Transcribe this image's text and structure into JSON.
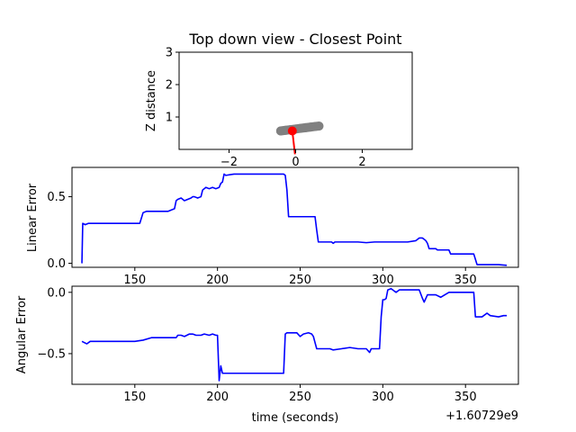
{
  "chart_data": [
    {
      "type": "scatter",
      "title": "Top down view - Closest Point",
      "xlabel": "",
      "ylabel": "Z distance",
      "xlim": [
        -3.5,
        3.5
      ],
      "ylim": [
        0,
        3
      ],
      "xticks": [
        -2,
        0,
        2
      ],
      "xtick_labels": [
        "−2",
        "0",
        "2"
      ],
      "yticks": [
        1,
        2,
        3
      ],
      "ytick_labels": [
        "1",
        "2",
        "3"
      ],
      "grid": false,
      "colors": {
        "trail": "#808080",
        "point": "#ff0000",
        "heading": "#ff0000"
      },
      "trail": {
        "x": [
          -0.45,
          -0.3,
          -0.15,
          0.0,
          0.15,
          0.3,
          0.45,
          0.6,
          0.7
        ],
        "y": [
          0.57,
          0.59,
          0.61,
          0.63,
          0.65,
          0.67,
          0.69,
          0.71,
          0.72
        ]
      },
      "point": {
        "x": -0.1,
        "y": 0.57
      },
      "heading": {
        "x": [
          -0.1,
          -0.02
        ],
        "y": [
          0.57,
          -0.15
        ]
      }
    },
    {
      "type": "line",
      "xlabel": "",
      "ylabel": "Linear Error",
      "xlim": [
        112,
        382
      ],
      "ylim": [
        -0.03,
        0.72
      ],
      "xticks": [
        150,
        200,
        250,
        300,
        350
      ],
      "xtick_labels": [
        "150",
        "200",
        "250",
        "300",
        "350"
      ],
      "yticks": [
        0,
        0.5
      ],
      "ytick_labels": [
        "0.0",
        "0.5"
      ],
      "grid": false,
      "color": "#0000ff",
      "series": [
        {
          "x": [
            118,
            118.5,
            120,
            122,
            125,
            130,
            135,
            140,
            145,
            150,
            153,
            155,
            157,
            160,
            165,
            170,
            172,
            174,
            175,
            176,
            178,
            180,
            182,
            184,
            185,
            186,
            188,
            190,
            191,
            193,
            195,
            197,
            199,
            201,
            202,
            203,
            204,
            205,
            210,
            215,
            220,
            225,
            230,
            235,
            240,
            241,
            242,
            243,
            250,
            255,
            259,
            260,
            261,
            265,
            269,
            270,
            271,
            275,
            280,
            285,
            290,
            295,
            300,
            305,
            310,
            315,
            320,
            322,
            324,
            326,
            327,
            328,
            332,
            333,
            335,
            340,
            341,
            345,
            350,
            355,
            356,
            357,
            360,
            365,
            370,
            375
          ],
          "y": [
            0.0,
            0.3,
            0.29,
            0.3,
            0.3,
            0.3,
            0.3,
            0.3,
            0.3,
            0.3,
            0.3,
            0.38,
            0.39,
            0.39,
            0.39,
            0.39,
            0.4,
            0.41,
            0.47,
            0.48,
            0.49,
            0.47,
            0.48,
            0.49,
            0.5,
            0.5,
            0.49,
            0.5,
            0.55,
            0.57,
            0.56,
            0.57,
            0.56,
            0.57,
            0.6,
            0.61,
            0.67,
            0.66,
            0.67,
            0.67,
            0.67,
            0.67,
            0.67,
            0.67,
            0.67,
            0.66,
            0.55,
            0.35,
            0.35,
            0.35,
            0.35,
            0.25,
            0.16,
            0.16,
            0.16,
            0.15,
            0.16,
            0.16,
            0.16,
            0.16,
            0.155,
            0.16,
            0.16,
            0.16,
            0.16,
            0.16,
            0.17,
            0.19,
            0.19,
            0.17,
            0.15,
            0.11,
            0.11,
            0.1,
            0.1,
            0.1,
            0.07,
            0.07,
            0.07,
            0.07,
            0.03,
            -0.01,
            -0.01,
            -0.01,
            -0.01,
            -0.015
          ]
        }
      ]
    },
    {
      "type": "line",
      "xlabel": "time (seconds)",
      "ylabel": "Angular Error",
      "xlim": [
        112,
        382
      ],
      "ylim": [
        -0.75,
        0.05
      ],
      "xticks": [
        150,
        200,
        250,
        300,
        350
      ],
      "xtick_labels": [
        "150",
        "200",
        "250",
        "300",
        "350"
      ],
      "yticks": [
        -0.5,
        0
      ],
      "ytick_labels": [
        "−0.5",
        "0.0"
      ],
      "offset_label": "+1.60729e9",
      "grid": false,
      "color": "#0000ff",
      "series": [
        {
          "x": [
            118,
            121,
            123,
            130,
            140,
            150,
            155,
            160,
            165,
            170,
            175,
            176,
            178,
            180,
            183,
            185,
            187,
            190,
            192,
            195,
            197,
            199,
            200,
            201,
            202,
            203,
            210,
            220,
            230,
            240,
            241,
            242,
            243,
            248,
            250,
            252,
            255,
            257,
            258,
            260,
            261,
            265,
            268,
            270,
            275,
            280,
            285,
            290,
            292,
            293,
            295,
            297,
            298,
            299,
            300,
            301,
            302,
            303,
            305,
            306,
            308,
            310,
            315,
            320,
            322,
            324,
            325,
            327,
            330,
            332,
            335,
            340,
            345,
            350,
            355,
            356,
            360,
            363,
            365,
            370,
            373,
            375
          ],
          "y": [
            -0.4,
            -0.42,
            -0.4,
            -0.4,
            -0.4,
            -0.4,
            -0.39,
            -0.37,
            -0.37,
            -0.37,
            -0.37,
            -0.35,
            -0.35,
            -0.36,
            -0.34,
            -0.34,
            -0.35,
            -0.35,
            -0.34,
            -0.35,
            -0.34,
            -0.35,
            -0.35,
            -0.72,
            -0.6,
            -0.66,
            -0.66,
            -0.66,
            -0.66,
            -0.66,
            -0.34,
            -0.33,
            -0.33,
            -0.33,
            -0.36,
            -0.34,
            -0.33,
            -0.34,
            -0.36,
            -0.46,
            -0.46,
            -0.46,
            -0.46,
            -0.47,
            -0.46,
            -0.45,
            -0.46,
            -0.46,
            -0.49,
            -0.46,
            -0.46,
            -0.46,
            -0.46,
            -0.2,
            -0.06,
            -0.06,
            -0.05,
            0.02,
            0.03,
            0.02,
            0.0,
            0.02,
            0.02,
            0.02,
            0.02,
            -0.05,
            -0.08,
            -0.02,
            -0.02,
            -0.02,
            -0.04,
            0.0,
            0.0,
            0.0,
            0.0,
            -0.2,
            -0.2,
            -0.17,
            -0.19,
            -0.2,
            -0.19,
            -0.19
          ]
        }
      ]
    }
  ]
}
